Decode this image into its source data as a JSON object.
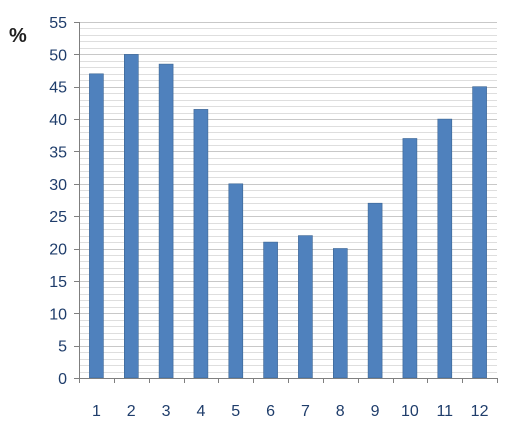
{
  "chart_data": {
    "type": "bar",
    "title": "",
    "xlabel": "",
    "ylabel": "%",
    "categories": [
      "1",
      "2",
      "3",
      "4",
      "5",
      "6",
      "7",
      "8",
      "9",
      "10",
      "11",
      "12"
    ],
    "values": [
      47,
      50,
      48.5,
      41.5,
      30,
      21,
      22,
      20,
      27,
      37,
      40,
      45
    ],
    "ylim": [
      0,
      55
    ],
    "yticks": [
      0,
      5,
      10,
      15,
      20,
      25,
      30,
      35,
      40,
      45,
      50,
      55
    ],
    "grid": true,
    "legend": "none",
    "colors": {
      "bar": "#4f81bd",
      "bar_edge": "#3a6391",
      "grid_major": "#c8c8c8",
      "grid_minor": "#dedede",
      "axis": "#7f7f7f",
      "tick_text": "#1f3d6b"
    }
  }
}
